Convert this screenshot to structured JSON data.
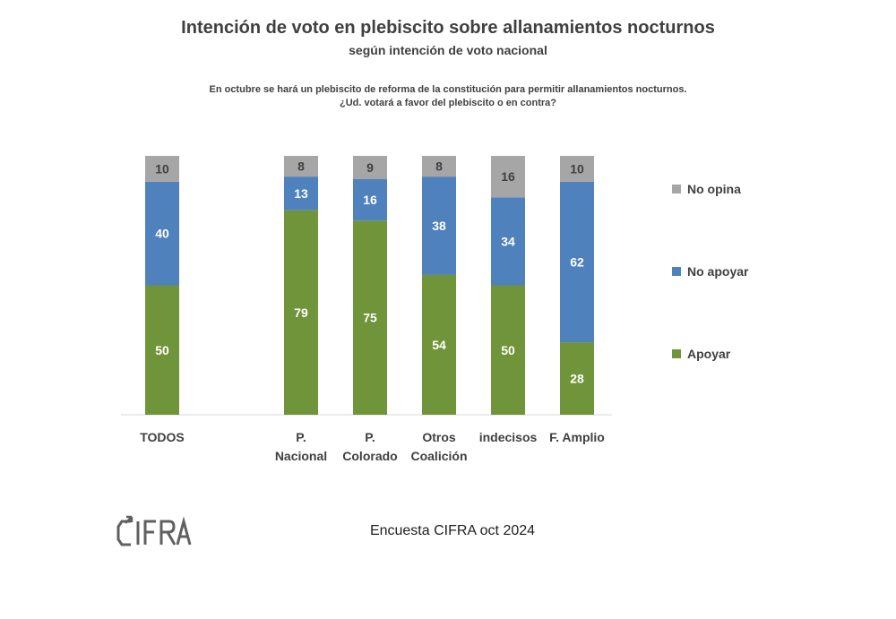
{
  "header": {
    "title": "Intención de voto en plebiscito sobre allanamientos nocturnos",
    "subtitle": "según intención de voto nacional",
    "question_line1": "En octubre se hará un plebiscito de reforma de la constitución para permitir allanamientos nocturnos.",
    "question_line2": "¿Ud. votará a favor del plebiscito o en contra?"
  },
  "chart_data": {
    "type": "bar",
    "stacked": true,
    "categories": [
      [
        "TODOS"
      ],
      [
        "P.",
        "Nacional"
      ],
      [
        "P.",
        "Colorado"
      ],
      [
        "Otros",
        "Coalición"
      ],
      [
        "indecisos"
      ],
      [
        "F. Amplio"
      ]
    ],
    "series": [
      {
        "name": "Apoyar",
        "color": "#70943a",
        "values": [
          50,
          79,
          75,
          54,
          50,
          28
        ]
      },
      {
        "name": "No apoyar",
        "color": "#4f81bd",
        "values": [
          40,
          13,
          16,
          38,
          34,
          62
        ]
      },
      {
        "name": "No opina",
        "color": "#a6a6a6",
        "values": [
          10,
          8,
          9,
          8,
          16,
          10
        ]
      }
    ],
    "data_labels": true,
    "ylim": [
      0,
      100
    ],
    "legend": "right"
  },
  "legend": {
    "items": [
      {
        "label": "No opina",
        "color": "#a6a6a6"
      },
      {
        "label": "No apoyar",
        "color": "#4f81bd"
      },
      {
        "label": "Apoyar",
        "color": "#70943a"
      }
    ]
  },
  "footer": {
    "source": "Encuesta CIFRA oct 2024",
    "logo_text": "CIFRA"
  }
}
